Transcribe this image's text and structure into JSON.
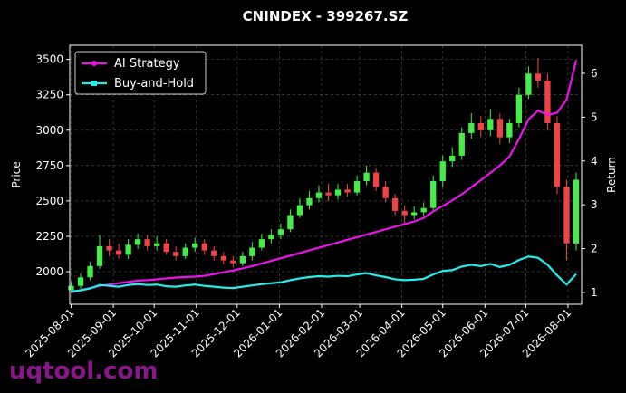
{
  "chart_data": {
    "type": "candlestick",
    "title": "CNINDEX - 399267.SZ",
    "y_label": "Price",
    "y2_label": "Return",
    "watermark": "uqtool.com",
    "x": [
      "2025-08-01",
      "2025-08-08",
      "2025-08-15",
      "2025-08-22",
      "2025-08-29",
      "2025-09-05",
      "2025-09-12",
      "2025-09-19",
      "2025-09-26",
      "2025-10-03",
      "2025-10-10",
      "2025-10-17",
      "2025-10-24",
      "2025-10-31",
      "2025-11-07",
      "2025-11-14",
      "2025-11-21",
      "2025-11-28",
      "2025-12-05",
      "2025-12-12",
      "2025-12-19",
      "2025-12-26",
      "2026-01-02",
      "2026-01-09",
      "2026-01-16",
      "2026-01-23",
      "2026-01-30",
      "2026-02-06",
      "2026-02-13",
      "2026-02-20",
      "2026-02-27",
      "2026-03-06",
      "2026-03-13",
      "2026-03-20",
      "2026-03-27",
      "2026-04-03",
      "2026-04-10",
      "2026-04-17",
      "2026-04-24",
      "2026-05-01",
      "2026-05-08",
      "2026-05-15",
      "2026-05-22",
      "2026-05-29",
      "2026-06-05",
      "2026-06-12",
      "2026-06-19",
      "2026-06-26",
      "2026-07-03",
      "2026-07-10",
      "2026-07-17",
      "2026-07-24",
      "2026-07-31",
      "2026-08-07"
    ],
    "open": [
      1870,
      1900,
      1960,
      2040,
      2180,
      2150,
      2120,
      2190,
      2230,
      2180,
      2200,
      2140,
      2110,
      2170,
      2200,
      2150,
      2110,
      2080,
      2060,
      2110,
      2170,
      2230,
      2260,
      2300,
      2400,
      2470,
      2520,
      2560,
      2540,
      2580,
      2560,
      2640,
      2700,
      2600,
      2520,
      2430,
      2400,
      2420,
      2450,
      2640,
      2780,
      2820,
      2980,
      3050,
      3000,
      3080,
      2950,
      3050,
      3250,
      3400,
      3350,
      3050,
      2600,
      2200
    ],
    "high": [
      1930,
      1990,
      2070,
      2260,
      2230,
      2200,
      2230,
      2270,
      2260,
      2250,
      2230,
      2180,
      2200,
      2240,
      2230,
      2180,
      2140,
      2110,
      2140,
      2210,
      2270,
      2300,
      2340,
      2440,
      2520,
      2570,
      2610,
      2620,
      2620,
      2620,
      2680,
      2750,
      2730,
      2640,
      2550,
      2470,
      2460,
      2490,
      2680,
      2820,
      2880,
      3020,
      3120,
      3100,
      3150,
      3120,
      3080,
      3300,
      3450,
      3510,
      3400,
      3100,
      2650,
      2700
    ],
    "low": [
      1850,
      1880,
      1940,
      2020,
      2110,
      2090,
      2090,
      2160,
      2150,
      2150,
      2120,
      2080,
      2090,
      2140,
      2120,
      2080,
      2050,
      2030,
      2040,
      2080,
      2150,
      2200,
      2230,
      2280,
      2380,
      2440,
      2490,
      2500,
      2510,
      2530,
      2540,
      2610,
      2570,
      2490,
      2400,
      2330,
      2370,
      2390,
      2430,
      2600,
      2740,
      2790,
      2940,
      2950,
      2960,
      2900,
      2910,
      3020,
      3220,
      3300,
      3000,
      2550,
      2080,
      2150
    ],
    "close": [
      1900,
      1960,
      2040,
      2180,
      2150,
      2120,
      2190,
      2230,
      2180,
      2200,
      2140,
      2110,
      2170,
      2200,
      2150,
      2110,
      2080,
      2060,
      2110,
      2170,
      2230,
      2260,
      2300,
      2400,
      2470,
      2520,
      2560,
      2540,
      2580,
      2560,
      2640,
      2700,
      2600,
      2520,
      2430,
      2400,
      2420,
      2450,
      2640,
      2780,
      2820,
      2980,
      3050,
      3000,
      3080,
      2950,
      3050,
      3250,
      3400,
      3350,
      3050,
      2600,
      2200,
      2650
    ],
    "up_color": "#44ee44",
    "down_color": "#ee4444",
    "series": [
      {
        "name": "AI Strategy",
        "color": "#ee11ee",
        "axis": "y2",
        "values": [
          1.0,
          1.05,
          1.1,
          1.15,
          1.18,
          1.21,
          1.24,
          1.27,
          1.28,
          1.3,
          1.32,
          1.34,
          1.35,
          1.36,
          1.38,
          1.42,
          1.46,
          1.5,
          1.55,
          1.6,
          1.66,
          1.72,
          1.78,
          1.84,
          1.9,
          1.96,
          2.02,
          2.08,
          2.14,
          2.2,
          2.26,
          2.32,
          2.38,
          2.44,
          2.5,
          2.56,
          2.62,
          2.7,
          2.85,
          2.97,
          3.1,
          3.24,
          3.4,
          3.56,
          3.73,
          3.9,
          4.1,
          4.5,
          4.95,
          5.15,
          5.05,
          5.1,
          5.4,
          6.3
        ]
      },
      {
        "name": "Buy-and-Hold",
        "color": "#22eeee",
        "axis": "y2",
        "values": [
          1.02,
          1.05,
          1.09,
          1.17,
          1.15,
          1.13,
          1.17,
          1.19,
          1.17,
          1.18,
          1.14,
          1.13,
          1.16,
          1.18,
          1.15,
          1.13,
          1.11,
          1.1,
          1.13,
          1.16,
          1.19,
          1.21,
          1.23,
          1.28,
          1.32,
          1.35,
          1.37,
          1.36,
          1.38,
          1.37,
          1.41,
          1.44,
          1.39,
          1.35,
          1.3,
          1.28,
          1.29,
          1.31,
          1.41,
          1.49,
          1.51,
          1.59,
          1.63,
          1.6,
          1.65,
          1.58,
          1.63,
          1.74,
          1.82,
          1.79,
          1.63,
          1.39,
          1.18,
          1.42
        ]
      }
    ],
    "xlim": [
      "2025-07-31",
      "2026-08-11"
    ],
    "xticks": [
      "2025-08-01",
      "2025-09-01",
      "2025-10-01",
      "2025-11-01",
      "2025-12-01",
      "2026-01-01",
      "2026-02-01",
      "2026-03-01",
      "2026-04-01",
      "2026-05-01",
      "2026-06-01",
      "2026-07-01",
      "2026-08-01"
    ],
    "ylim": [
      1770,
      3600
    ],
    "yticks": [
      2000,
      2250,
      2500,
      2750,
      3000,
      3250,
      3500
    ],
    "y2lim": [
      0.73,
      6.64
    ],
    "y2ticks": [
      1,
      2,
      3,
      4,
      5,
      6
    ],
    "grid": true,
    "legend": "upper left"
  }
}
